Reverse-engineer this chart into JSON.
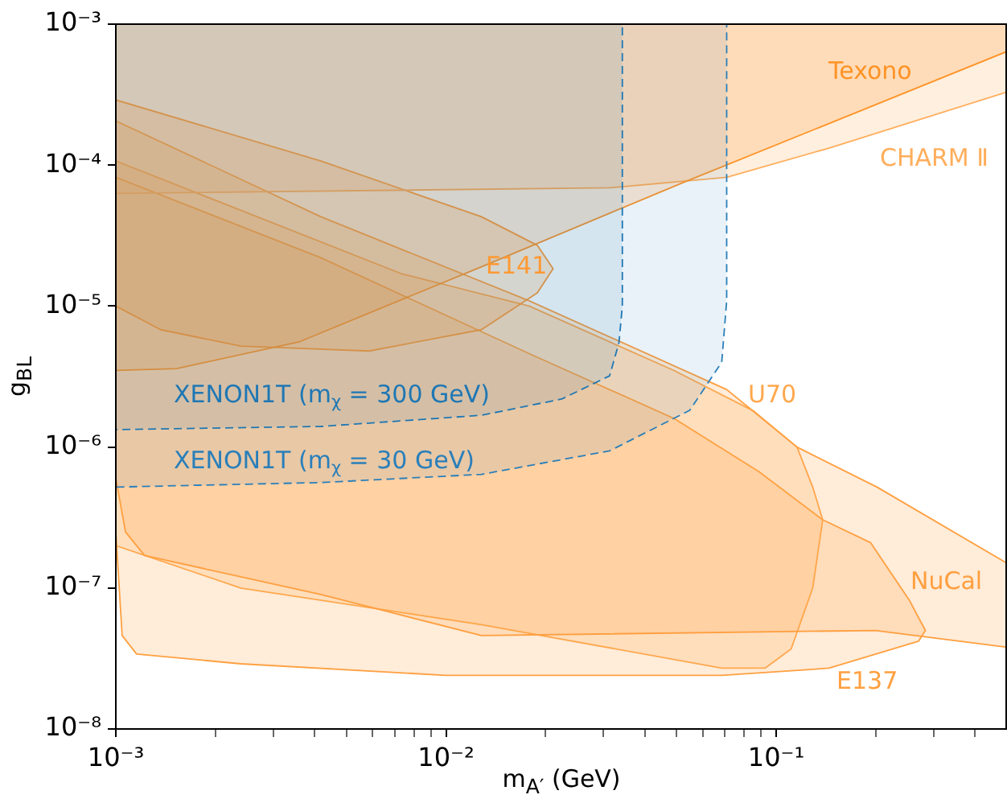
{
  "chart_data": {
    "type": "area",
    "xlabel": "m$_{A′}$ (GeV)",
    "ylabel": "g$_{BL}$",
    "log": "xy",
    "grid": false,
    "legend": false,
    "xlim": [
      0.001,
      0.5
    ],
    "ylim": [
      1e-08,
      0.001
    ],
    "xticks": [
      {
        "value": 0.001,
        "label": "10⁻³"
      },
      {
        "value": 0.002,
        "label": null
      },
      {
        "value": 0.003,
        "label": null
      },
      {
        "value": 0.004,
        "label": null
      },
      {
        "value": 0.005,
        "label": null
      },
      {
        "value": 0.006,
        "label": null
      },
      {
        "value": 0.007,
        "label": null
      },
      {
        "value": 0.008,
        "label": null
      },
      {
        "value": 0.009,
        "label": null
      },
      {
        "value": 0.01,
        "label": "10⁻²"
      },
      {
        "value": 0.02,
        "label": null
      },
      {
        "value": 0.03,
        "label": null
      },
      {
        "value": 0.04,
        "label": null
      },
      {
        "value": 0.05,
        "label": null
      },
      {
        "value": 0.06,
        "label": null
      },
      {
        "value": 0.07,
        "label": null
      },
      {
        "value": 0.08,
        "label": null
      },
      {
        "value": 0.09,
        "label": null
      },
      {
        "value": 0.1,
        "label": "10⁻¹"
      },
      {
        "value": 0.2,
        "label": null
      },
      {
        "value": 0.3,
        "label": null
      },
      {
        "value": 0.4,
        "label": null
      }
    ],
    "yticks": [
      {
        "value": 1e-08,
        "label": "10⁻⁸"
      },
      {
        "value": 1e-07,
        "label": "10⁻⁷"
      },
      {
        "value": 1e-06,
        "label": "10⁻⁶"
      },
      {
        "value": 1e-05,
        "label": "10⁻⁵"
      },
      {
        "value": 0.0001,
        "label": "10⁻⁴"
      },
      {
        "value": 0.001,
        "label": "10⁻³"
      }
    ],
    "series": [
      {
        "name": "E137",
        "color": "#ffa040",
        "x": [
          0.001,
          0.00418,
          0.01786,
          0.0489,
          0.0885,
          0.1383,
          0.193,
          0.253,
          0.283,
          0.27,
          0.1445,
          0.0684,
          0.01,
          0.00239,
          0.001156,
          0.001045,
          0.001,
          0.001
        ],
        "values": [
          8.2e-05,
          2.2e-05,
          4.6e-06,
          1.6e-06,
          6.7e-07,
          3.05e-07,
          2.1e-07,
          8.2e-08,
          5e-08,
          4.2e-08,
          2.7e-08,
          2.4e-08,
          2.4e-08,
          2.9e-08,
          3.4e-08,
          4.6e-08,
          2.5e-07,
          8.2e-05
        ]
      },
      {
        "name": "U70",
        "color": "#ffa84d",
        "x": [
          0.001,
          0.00731,
          0.01786,
          0.0489,
          0.0855,
          0.1156,
          0.129,
          0.1383,
          0.129,
          0.111,
          0.0925,
          0.0684,
          0.0128,
          0.00239,
          0.001,
          0.001
        ],
        "values": [
          0.000107,
          1.7e-05,
          1e-05,
          3.5e-06,
          1.8e-06,
          1e-06,
          5.2e-07,
          3.05e-07,
          1e-07,
          3.7e-08,
          2.7e-08,
          2.7e-08,
          5.5e-08,
          1e-07,
          2e-07,
          0.000107
        ]
      },
      {
        "name": "NuCal",
        "color": "#ff9f3f",
        "x": [
          0.001,
          0.00418,
          0.01786,
          0.0708,
          0.1156,
          0.202,
          0.5,
          0.5,
          0.2,
          0.0128,
          0.00418,
          0.001222,
          0.00107,
          0.001,
          0.001
        ],
        "values": [
          0.000206,
          4.3e-05,
          1.09e-05,
          2.56e-06,
          1e-06,
          5.2e-07,
          1.5e-07,
          3.8e-08,
          5e-08,
          4.6e-08,
          9e-08,
          1.7e-07,
          2.5e-07,
          6e-07,
          0.000206
        ]
      },
      {
        "name": "E141",
        "color": "#ff9933",
        "x": [
          0.001,
          0.00418,
          0.0128,
          0.0189,
          0.0211,
          0.0189,
          0.0128,
          0.00585,
          0.00239,
          0.001367,
          0.001,
          0.001
        ],
        "values": [
          0.00029,
          0.000107,
          4.3e-05,
          2.7e-05,
          1.84e-05,
          1.24e-05,
          6.8e-06,
          4.8e-06,
          5.2e-06,
          6.8e-06,
          1e-05,
          0.00029
        ]
      },
      {
        "name": "CHARM Ⅱ",
        "color": "#ffae5c",
        "x": [
          0.001,
          0.001,
          0.0313,
          0.0708,
          0.1445,
          0.5,
          0.5,
          0.001
        ],
        "values": [
          0.001,
          6.3e-05,
          6.9e-05,
          8.2e-05,
          0.000132,
          0.00033,
          0.001,
          0.001
        ]
      },
      {
        "name": "Texono",
        "color": "#ff9326",
        "x": [
          0.001,
          0.001,
          0.00153,
          0.00361,
          0.0128,
          0.0528,
          0.5,
          0.5,
          0.001
        ],
        "values": [
          0.001,
          3.5e-06,
          3.6e-06,
          5.6e-06,
          1.9e-05,
          7.6e-05,
          0.00064,
          0.001,
          0.001
        ]
      },
      {
        "name": "XENON1T (m$_{χ}$ = 300 GeV)",
        "color": "#1f77b4",
        "line_style": "dashed",
        "x": [
          0.001,
          0.001,
          0.00418,
          0.0128,
          0.0224,
          0.0313,
          0.0334,
          0.0342,
          0.0342,
          0.001
        ],
        "values": [
          0.001,
          1.33e-06,
          1.4e-06,
          1.68e-06,
          2.19e-06,
          3.2e-06,
          5.5e-06,
          1e-05,
          0.001,
          0.001
        ]
      },
      {
        "name": "XENON1T (m$_{χ}$ = 30 GeV)",
        "color": "#2a7fba",
        "line_style": "dashed",
        "x": [
          0.001,
          0.001,
          0.00418,
          0.0128,
          0.0313,
          0.0547,
          0.0684,
          0.0708,
          0.0708,
          0.001
        ],
        "values": [
          0.001,
          5.2e-07,
          5.6e-07,
          6.4e-07,
          9.4e-07,
          1.82e-06,
          4e-06,
          1.09e-05,
          0.001,
          0.001
        ]
      }
    ]
  }
}
